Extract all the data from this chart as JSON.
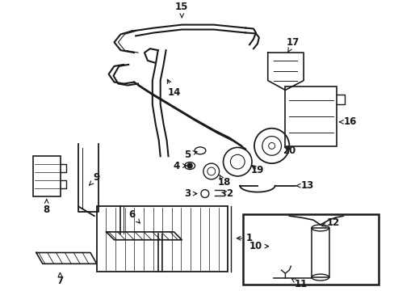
{
  "background_color": "#ffffff",
  "line_color": "#1a1a1a",
  "fig_width": 4.89,
  "fig_height": 3.6,
  "dpi": 100,
  "label_font_size": 8.5
}
